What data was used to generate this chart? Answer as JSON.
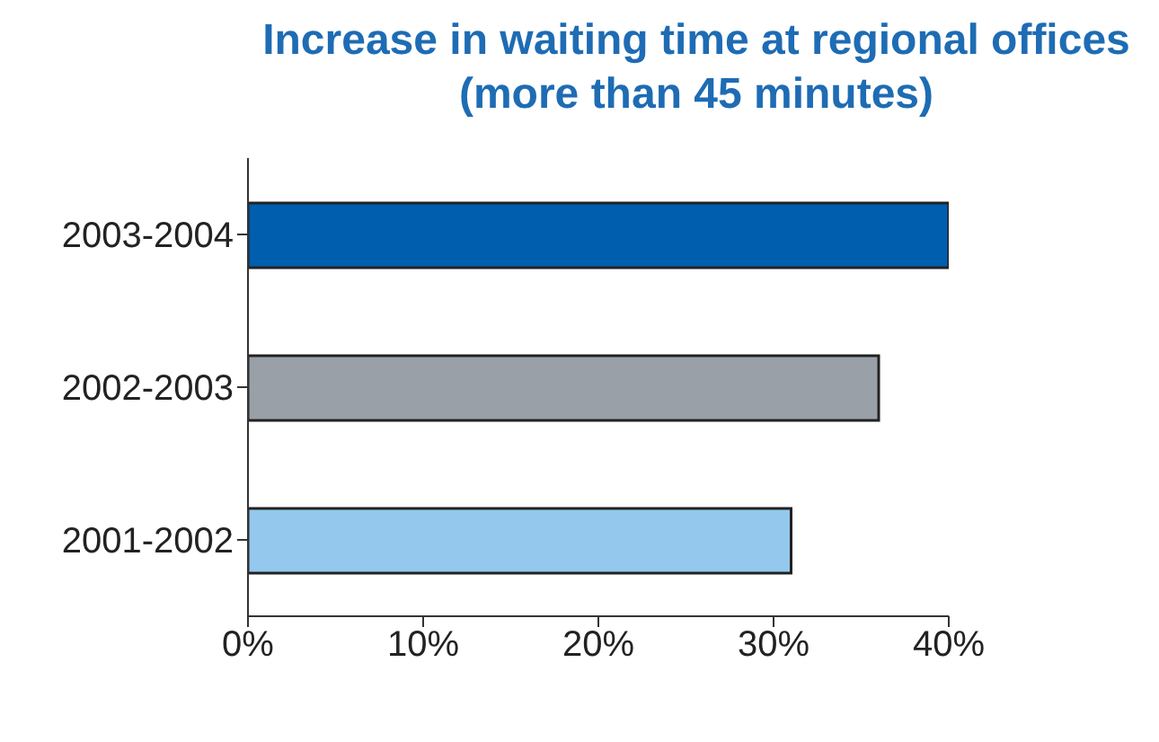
{
  "chart_data": {
    "type": "bar",
    "orientation": "horizontal",
    "title": "Increase in waiting time at regional offices\n(more than 45 minutes)",
    "categories": [
      "2003-2004",
      "2002-2003",
      "2001-2002"
    ],
    "values": [
      40,
      36,
      31
    ],
    "colors": [
      "#005eaf",
      "#9aa0a8",
      "#94c8ec"
    ],
    "xlim": [
      0,
      40
    ],
    "xticks": [
      {
        "value": 0,
        "label": "0%"
      },
      {
        "value": 10,
        "label": "10%"
      },
      {
        "value": 20,
        "label": "20%"
      },
      {
        "value": 30,
        "label": "30%"
      },
      {
        "value": 40,
        "label": "40%"
      }
    ],
    "grid": false,
    "legend": false
  }
}
